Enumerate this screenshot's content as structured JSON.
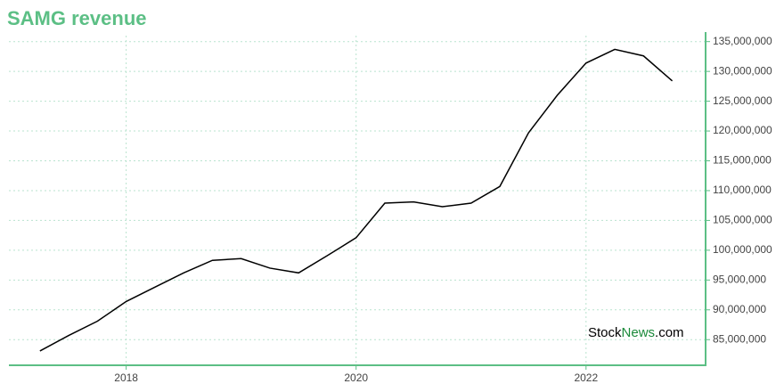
{
  "chart_data": {
    "type": "line",
    "title": "SAMG revenue",
    "x": [
      2017.25,
      2017.5,
      2017.75,
      2018,
      2018.25,
      2018.5,
      2018.75,
      2019,
      2019.25,
      2019.5,
      2019.75,
      2020,
      2020.25,
      2020.5,
      2020.75,
      2021,
      2021.25,
      2021.5,
      2021.75,
      2022,
      2022.25,
      2022.5,
      2022.75
    ],
    "values": [
      83100000,
      85700000,
      88100000,
      91400000,
      93800000,
      96200000,
      98300000,
      98600000,
      97000000,
      96200000,
      99100000,
      102100000,
      107900000,
      108100000,
      107300000,
      107900000,
      110700000,
      119700000,
      126000000,
      131400000,
      133700000,
      132600000,
      128400000
    ],
    "color": "#000000",
    "xlim": [
      2016.98,
      2023.04
    ],
    "xticks": [
      2018,
      2020,
      2022
    ],
    "ylim": [
      80700000,
      136000000
    ],
    "yticks": [
      {
        "value": 85000000,
        "label": "85,000,000"
      },
      {
        "value": 90000000,
        "label": "90,000,000"
      },
      {
        "value": 95000000,
        "label": "95,000,000"
      },
      {
        "value": 100000000,
        "label": "100,000,000"
      },
      {
        "value": 105000000,
        "label": "105,000,000"
      },
      {
        "value": 110000000,
        "label": "110,000,000"
      },
      {
        "value": 115000000,
        "label": "115,000,000"
      },
      {
        "value": 120000000,
        "label": "120,000,000"
      },
      {
        "value": 125000000,
        "label": "125,000,000"
      },
      {
        "value": 130000000,
        "label": "130,000,000"
      },
      {
        "value": 135000000,
        "label": "135,000,000"
      }
    ],
    "grid": true,
    "watermark": [
      "Stock",
      "News",
      ".com"
    ]
  }
}
